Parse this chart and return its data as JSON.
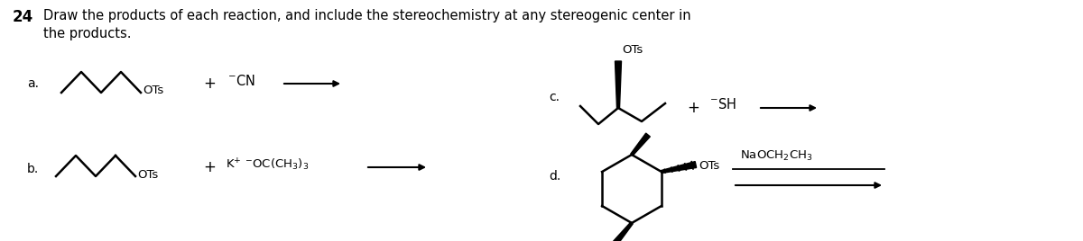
{
  "title_num": "24",
  "background_color": "#ffffff",
  "text_color": "#000000",
  "figsize": [
    12.0,
    2.68
  ],
  "dpi": 100,
  "title_line1": "Draw the products of each reaction, and include the stereochemistry at any stereogenic center in",
  "title_line2": "the products.",
  "label_a": "a.",
  "label_b": "b.",
  "label_c": "c.",
  "label_d": "d.",
  "reagent_a": "$^{-}$CN",
  "reagent_b": "K$^{+}$ $^{-}$OC(CH$_3$)$_3$",
  "reagent_c": "$^{-}$SH",
  "reagent_d": "NaOCH$_2$CH$_3$",
  "OTs": "OTs"
}
